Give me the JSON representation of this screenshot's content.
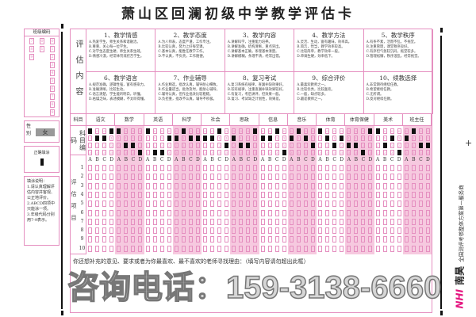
{
  "title": "萧山区回澜初级中学教学评估卡",
  "eval_label": "评估内容",
  "criteria": [
    {
      "h": "1、教学情感",
      "o": [
        "A.热爱学生，师生关系和谐融洽。",
        "B.尊重、关心每一位学生。",
        "C.对学生态度生硬，师生关系生疏。",
        "D.情感冷漠，经常体罚或挖苦学生。"
      ]
    },
    {
      "h": "2、教学态度",
      "o": [
        "A.为人师表，态度严谨，工作专注。",
        "B.比较认真，努力上好每堂课。",
        "C.基本认真，能胜任教学工作。",
        "D.不认真，不负责，工作随便。"
      ]
    },
    {
      "h": "3、教学内容",
      "o": [
        "A.讲解科学，注重能力培养。",
        "B.讲解准确，结构清晰，重点突出。",
        "C.讲解基本正确，条理基本清楚。",
        "D.讲解模糊，条理不清，经常出错。"
      ]
    },
    {
      "h": "4、教学方法",
      "o": [
        "A.灵活、生动，富有趣味，效率高。",
        "B.简洁，恰当，教学效率较高。",
        "C.比较简单，教学效率一般。",
        "D.单调生硬，效率低下。"
      ]
    },
    {
      "h": "5、教学秩序",
      "o": [
        "A.有条不紊，活而不乱，不拖堂。",
        "B.注重管理，课堂秩序良好。",
        "C.有序但气氛较沉闷，拖堂较多。",
        "D.管理松懈，秩序混乱，经常拖堂。"
      ]
    },
    {
      "h": "6、教学语言",
      "o": [
        "A.规范准确，逻辑性强，富有感染力。",
        "B.准确清晰，比较生动。",
        "C.语言清楚，学生能听明白，听懂。",
        "D.枯燥乏味，表述模糊，不太听得懂。"
      ]
    },
    {
      "h": "7、作业辅导",
      "o": [
        "A.作业精选，批改认真，辅导耐心细致。",
        "B.作业量适当，批改及时，能耐心辅导。",
        "C.辅导认真，但作业批改比较粗糙。",
        "D.负担重，批改不认真，辅导不积极。"
      ]
    },
    {
      "h": "8、复习考试",
      "o": [
        "A.复习系统有规律，查漏补缺效果好。",
        "B.较有规律，注重查漏补缺效果较好。",
        "C.有复习，考后讲评，但效果一般。",
        "D.复习、考试缺乏计划性，效果差。"
      ]
    },
    {
      "h": "9、综合评价",
      "o": [
        "A.最喜欢教师之一。",
        "B.比较优秀，比较喜欢。",
        "C.一般，缺点较多。",
        "D.最差教师之一。"
      ]
    },
    {
      "h": "10、续教选择",
      "o": [
        "A.非常期待继续任教。",
        "B.希望继续任教。",
        "C.无所谓。",
        "D.反对继续任教。"
      ]
    }
  ],
  "subject_label": "科目",
  "code_label": "科目编码",
  "items_label": "评估项目",
  "subjects": [
    {
      "name": "语文",
      "code": "0110"
    },
    {
      "name": "数学",
      "code": "0223"
    },
    {
      "name": "英语",
      "code": "0331"
    },
    {
      "name": "科学",
      "code": "1011"
    },
    {
      "name": "社会",
      "code": "1102"
    },
    {
      "name": "思政",
      "code": "1220"
    },
    {
      "name": "信息",
      "code": "1103"
    },
    {
      "name": "音乐",
      "code": "1012"
    },
    {
      "name": "体育",
      "code": "0121"
    },
    {
      "name": "体育保健",
      "code": "2230"
    },
    {
      "name": "美术",
      "code": "0213"
    },
    {
      "name": "班主任",
      "code": "1022"
    }
  ],
  "digits": [
    "0",
    "1",
    "2",
    "3"
  ],
  "options": [
    "A",
    "B",
    "C",
    "D"
  ],
  "item_numbers": [
    "1",
    "2",
    "3",
    "4",
    "5",
    "6",
    "7",
    "8",
    "9",
    "10"
  ],
  "comment_prompt": "你还想补充的意见、要求或者为你最喜欢、最不喜欢的老师寻找理由：（填写内容请勿超出此框）",
  "sidebar": {
    "class_code_label": "班级编码",
    "class_cols": [
      [
        "7",
        "8",
        "9"
      ],
      [
        "0",
        "1"
      ],
      [
        "0",
        "1",
        "2",
        "3",
        "4",
        "5",
        "6",
        "7",
        "8",
        "9"
      ]
    ],
    "gender_label": "性别",
    "gender_value": "女",
    "correct_fill_label": "正确填涂",
    "instructions_title": "填涂说明：",
    "instructions": [
      "1.请认真理解评估内容并客观、公正地评价。",
      "2.ABCD四项中只能涂一项。",
      "3.年级代码分别用7-9表示。"
    ]
  },
  "watermark": "咨询电话：159-3138-6660",
  "brand": {
    "logo": "NHI",
    "name": "南昊",
    "tagline": "全国测评考核整体方案第一服务商",
    "logo_color": "#e4147f"
  },
  "colors": {
    "pink_line": "#e58fc0",
    "pink_fill": "#f6c9df"
  }
}
